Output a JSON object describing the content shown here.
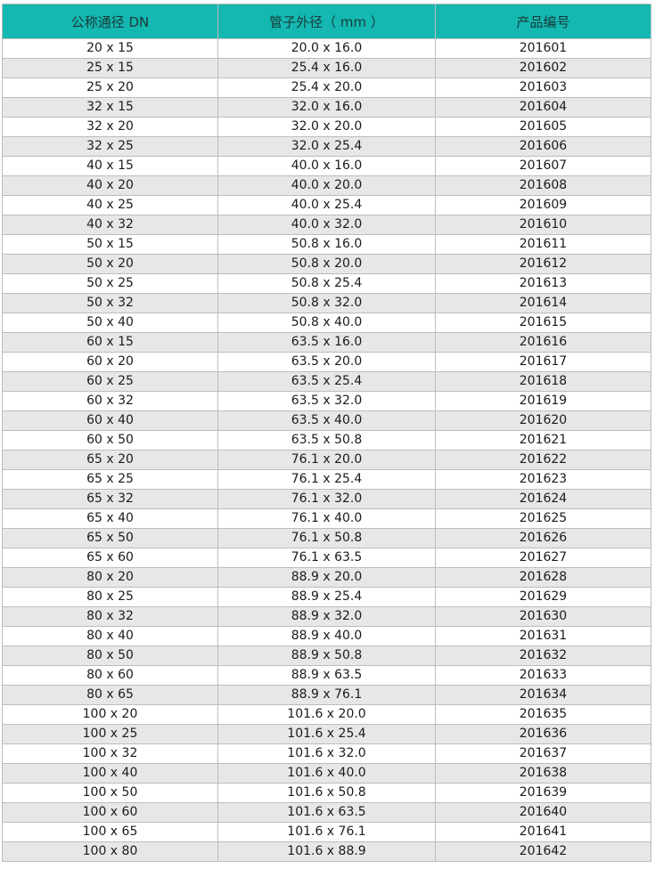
{
  "table": {
    "headers": [
      "公称通径 DN",
      "管子外径（ mm ）",
      "产品编号"
    ],
    "header_color": "#14b8b1",
    "rows": [
      [
        "20 x 15",
        "20.0 x 16.0",
        "201601"
      ],
      [
        "25 x 15",
        "25.4 x 16.0",
        "201602"
      ],
      [
        "25 x 20",
        "25.4 x 20.0",
        "201603"
      ],
      [
        "32 x 15",
        "32.0 x 16.0",
        "201604"
      ],
      [
        "32 x 20",
        "32.0 x 20.0",
        "201605"
      ],
      [
        "32 x 25",
        "32.0 x 25.4",
        "201606"
      ],
      [
        "40 x 15",
        "40.0 x 16.0",
        "201607"
      ],
      [
        "40 x 20",
        "40.0 x 20.0",
        "201608"
      ],
      [
        "40 x 25",
        "40.0 x 25.4",
        "201609"
      ],
      [
        "40 x 32",
        "40.0 x 32.0",
        "201610"
      ],
      [
        "50 x 15",
        "50.8 x 16.0",
        "201611"
      ],
      [
        "50 x 20",
        "50.8 x 20.0",
        "201612"
      ],
      [
        "50 x 25",
        "50.8 x 25.4",
        "201613"
      ],
      [
        "50 x 32",
        "50.8 x 32.0",
        "201614"
      ],
      [
        "50 x 40",
        "50.8 x 40.0",
        "201615"
      ],
      [
        "60 x 15",
        "63.5 x 16.0",
        "201616"
      ],
      [
        "60 x 20",
        "63.5 x 20.0",
        "201617"
      ],
      [
        "60 x 25",
        "63.5 x 25.4",
        "201618"
      ],
      [
        "60 x 32",
        "63.5 x 32.0",
        "201619"
      ],
      [
        "60 x 40",
        "63.5 x 40.0",
        "201620"
      ],
      [
        "60 x 50",
        "63.5 x 50.8",
        "201621"
      ],
      [
        "65 x 20",
        "76.1 x 20.0",
        "201622"
      ],
      [
        "65 x 25",
        "76.1 x 25.4",
        "201623"
      ],
      [
        "65 x 32",
        "76.1 x 32.0",
        "201624"
      ],
      [
        "65 x 40",
        "76.1 x 40.0",
        "201625"
      ],
      [
        "65 x 50",
        "76.1 x 50.8",
        "201626"
      ],
      [
        "65 x 60",
        "76.1 x 63.5",
        "201627"
      ],
      [
        "80 x 20",
        "88.9 x 20.0",
        "201628"
      ],
      [
        "80 x 25",
        "88.9 x 25.4",
        "201629"
      ],
      [
        "80 x 32",
        "88.9 x 32.0",
        "201630"
      ],
      [
        "80 x 40",
        "88.9 x 40.0",
        "201631"
      ],
      [
        "80 x 50",
        "88.9 x 50.8",
        "201632"
      ],
      [
        "80 x 60",
        "88.9 x 63.5",
        "201633"
      ],
      [
        "80 x 65",
        "88.9 x 76.1",
        "201634"
      ],
      [
        "100 x 20",
        "101.6 x 20.0",
        "201635"
      ],
      [
        "100 x 25",
        "101.6 x 25.4",
        "201636"
      ],
      [
        "100 x 32",
        "101.6 x 32.0",
        "201637"
      ],
      [
        "100 x 40",
        "101.6 x 40.0",
        "201638"
      ],
      [
        "100 x 50",
        "101.6 x 50.8",
        "201639"
      ],
      [
        "100 x 60",
        "101.6 x 63.5",
        "201640"
      ],
      [
        "100 x 65",
        "101.6 x 76.1",
        "201641"
      ],
      [
        "100 x 80",
        "101.6 x 88.9",
        "201642"
      ]
    ]
  }
}
